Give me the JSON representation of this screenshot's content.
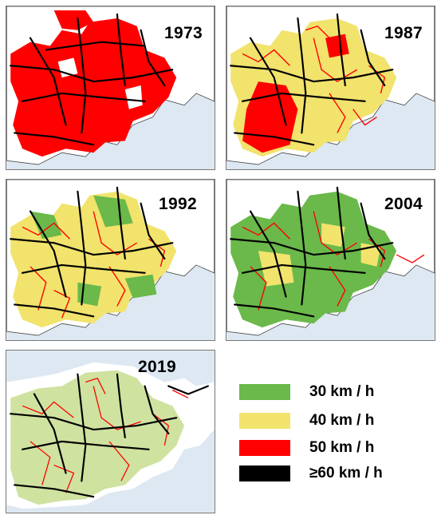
{
  "panels": [
    {
      "id": "p1973",
      "year": "1973"
    },
    {
      "id": "p1987",
      "year": "1987"
    },
    {
      "id": "p1992",
      "year": "1992"
    },
    {
      "id": "p2004",
      "year": "2004"
    },
    {
      "id": "p2019",
      "year": "2019"
    }
  ],
  "legend": {
    "items": [
      {
        "label": "30 km / h",
        "color": "#6ab94a"
      },
      {
        "label": "40 km / h",
        "color": "#f1e36c"
      },
      {
        "label": "50 km / h",
        "color": "#ff0000"
      },
      {
        "label": "≥60 km / h",
        "color": "#000000"
      }
    ]
  },
  "map_colors": {
    "sea": "#dde8f2",
    "land": "#ffffff",
    "coast": "#444444",
    "zone_30": "#6ab94a",
    "zone_40": "#f1e36c",
    "zone_50": "#ff0000",
    "road_60": "#000000",
    "land_2019_light": "#cfe2a0"
  }
}
